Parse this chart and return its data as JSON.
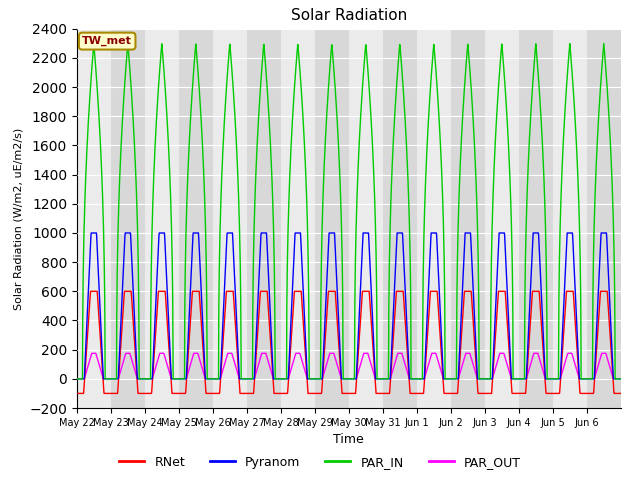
{
  "title": "Solar Radiation",
  "ylabel": "Solar Radiation (W/m2, uE/m2/s)",
  "xlabel": "Time",
  "ylim": [
    -200,
    2400
  ],
  "yticks": [
    -200,
    0,
    200,
    400,
    600,
    800,
    1000,
    1200,
    1400,
    1600,
    1800,
    2000,
    2200,
    2400
  ],
  "station_label": "TW_met",
  "legend_labels": [
    "RNet",
    "Pyranom",
    "PAR_IN",
    "PAR_OUT"
  ],
  "line_colors": [
    "#ff0000",
    "#0000ff",
    "#00cc00",
    "#ff00ff"
  ],
  "background_color": "#ffffff",
  "plot_bg_color": "#d8d8d8",
  "plot_bg_light": "#ebebeb",
  "n_days": 16,
  "rnet_peak": 600,
  "rnet_night": -100,
  "pyranom_peak": 1000,
  "par_in_peak": 2300,
  "par_out_peak": 175,
  "tick_labels": [
    "May 22",
    "May 23",
    "May 24",
    "May 25",
    "May 26",
    "May 27",
    "May 28",
    "May 29",
    "May 30",
    "May 31",
    "Jun 1",
    "Jun 2",
    "Jun 3",
    "Jun 4",
    "Jun 5",
    "Jun 6"
  ]
}
